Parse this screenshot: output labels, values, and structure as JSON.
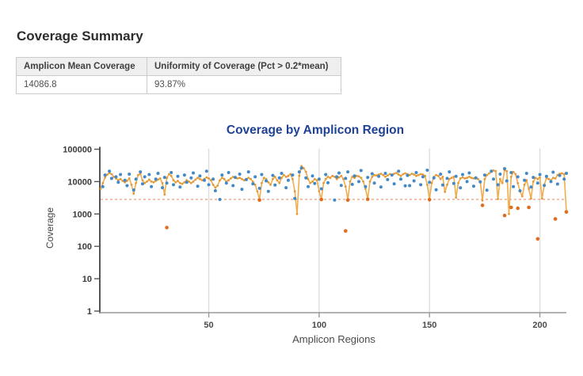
{
  "heading": "Coverage Summary",
  "table": {
    "columns": [
      "Amplicon Mean Coverage",
      "Uniformity of Coverage (Pct > 0.2*mean)"
    ],
    "rows": [
      [
        "14086.8",
        "93.87%"
      ]
    ]
  },
  "chart_data": {
    "type": "line",
    "title": "Coverage by Amplicon Region",
    "xlabel": "Amplicon Regions",
    "ylabel": "Coverage",
    "y_scale": "log",
    "ylim": [
      1,
      100000
    ],
    "xlim": [
      1,
      212
    ],
    "grid": "vertical-only",
    "legend": "none",
    "y_ticks": [
      1,
      10,
      100,
      1000,
      10000,
      100000
    ],
    "x_ticks": [
      50,
      100,
      150,
      200
    ],
    "threshold": {
      "name": "0.2*mean coverage threshold",
      "value": 2817.36,
      "color": "#F19C76"
    },
    "colors": {
      "title": "#1E4297",
      "line": "#F0AD4E",
      "line_marker": "#E49A38",
      "scatter": "#4189C7",
      "outlier": "#E06C1F",
      "grid": "#DDDDDD",
      "y_axis": "#555555",
      "x_axis": "#9A9A9A",
      "tick_text": "#3A3A3A"
    },
    "series": [
      {
        "name": "amplicon-coverage-line",
        "type": "line",
        "color": "#F0AD4E",
        "values": [
          6000,
          9000,
          13500,
          16500,
          18500,
          17000,
          14000,
          12500,
          11000,
          12000,
          10500,
          9500,
          10500,
          12500,
          8000,
          4200,
          9000,
          16000,
          17500,
          11000,
          9000,
          10000,
          11500,
          10000,
          9500,
          10500,
          11500,
          12500,
          9000,
          4000,
          13000,
          17000,
          15000,
          11000,
          9500,
          10500,
          9000,
          8500,
          9500,
          11000,
          10000,
          9000,
          10000,
          11500,
          13000,
          12000,
          11000,
          12000,
          13500,
          12500,
          11000,
          8000,
          6500,
          7500,
          11000,
          13000,
          12000,
          10000,
          11000,
          12500,
          14000,
          13000,
          12500,
          13000,
          12000,
          11000,
          12000,
          13000,
          12000,
          10000,
          8000,
          5000,
          2800,
          9000,
          13000,
          12000,
          9500,
          8000,
          12000,
          14000,
          11000,
          9000,
          13000,
          16000,
          14000,
          15000,
          17000,
          12000,
          5000,
          1000,
          15000,
          30000,
          26000,
          20000,
          12000,
          9000,
          10000,
          12000,
          11000,
          5000,
          2900,
          9000,
          12000,
          14000,
          13000,
          15000,
          14000,
          12000,
          13500,
          15000,
          12000,
          7000,
          2750,
          10000,
          14000,
          13000,
          15000,
          14500,
          13000,
          10000,
          6000,
          2900,
          10000,
          14000,
          16000,
          15500,
          16500,
          17500,
          16000,
          14000,
          15500,
          17000,
          16000,
          17500,
          18500,
          16500,
          15000,
          17000,
          18000,
          17000,
          16000,
          17500,
          16500,
          15000,
          16000,
          17000,
          16500,
          15000,
          8000,
          2800,
          9000,
          14000,
          16000,
          15000,
          12000,
          14000,
          4800,
          8000,
          12000,
          13000,
          14000,
          3200,
          9000,
          12500,
          13500,
          12500,
          13000,
          14000,
          13000,
          12500,
          13500,
          12000,
          10000,
          2600,
          12000,
          16000,
          18000,
          20000,
          22000,
          21000,
          2900,
          12000,
          9000,
          22500,
          21000,
          1000,
          14000,
          20000,
          17000,
          9000,
          5000,
          3500,
          8000,
          11000,
          6000,
          3000,
          10000,
          13000,
          12000,
          13500,
          3000,
          8000,
          13000,
          12000,
          11000,
          13000,
          12500,
          16000,
          17500,
          18000,
          17000,
          1200
        ]
      },
      {
        "name": "amplicon-coverage-points",
        "type": "scatter",
        "color": "#4189C7",
        "points": [
          [
            2,
            7000
          ],
          [
            3,
            16000
          ],
          [
            5,
            21000
          ],
          [
            6,
            12500
          ],
          [
            8,
            14000
          ],
          [
            9,
            9500
          ],
          [
            10,
            16500
          ],
          [
            12,
            11000
          ],
          [
            13,
            7500
          ],
          [
            14,
            17000
          ],
          [
            16,
            5500
          ],
          [
            17,
            12000
          ],
          [
            19,
            20000
          ],
          [
            20,
            8500
          ],
          [
            21,
            14000
          ],
          [
            23,
            16500
          ],
          [
            24,
            7000
          ],
          [
            26,
            12000
          ],
          [
            27,
            18000
          ],
          [
            29,
            6500
          ],
          [
            30,
            13500
          ],
          [
            31,
            9000
          ],
          [
            33,
            19000
          ],
          [
            34,
            8000
          ],
          [
            36,
            14500
          ],
          [
            37,
            6800
          ],
          [
            39,
            16000
          ],
          [
            40,
            9500
          ],
          [
            42,
            13000
          ],
          [
            43,
            18500
          ],
          [
            45,
            7200
          ],
          [
            46,
            15000
          ],
          [
            48,
            11000
          ],
          [
            49,
            21000
          ],
          [
            50,
            8000
          ],
          [
            52,
            12000
          ],
          [
            53,
            5200
          ],
          [
            55,
            2800
          ],
          [
            56,
            16000
          ],
          [
            58,
            9000
          ],
          [
            59,
            19000
          ],
          [
            61,
            7500
          ],
          [
            62,
            13500
          ],
          [
            64,
            17000
          ],
          [
            65,
            5800
          ],
          [
            67,
            11500
          ],
          [
            68,
            20000
          ],
          [
            70,
            8500
          ],
          [
            71,
            14000
          ],
          [
            73,
            6200
          ],
          [
            74,
            16500
          ],
          [
            76,
            10500
          ],
          [
            77,
            5000
          ],
          [
            79,
            15500
          ],
          [
            80,
            7800
          ],
          [
            82,
            13000
          ],
          [
            83,
            18000
          ],
          [
            85,
            6500
          ],
          [
            86,
            11000
          ],
          [
            88,
            16000
          ],
          [
            89,
            3000
          ],
          [
            91,
            20000
          ],
          [
            92,
            26000
          ],
          [
            94,
            13000
          ],
          [
            95,
            7000
          ],
          [
            97,
            15000
          ],
          [
            98,
            8800
          ],
          [
            100,
            12000
          ],
          [
            101,
            6000
          ],
          [
            103,
            16500
          ],
          [
            104,
            9200
          ],
          [
            107,
            2700
          ],
          [
            108,
            14000
          ],
          [
            109,
            18500
          ],
          [
            110,
            7600
          ],
          [
            112,
            12500
          ],
          [
            113,
            20000
          ],
          [
            115,
            8200
          ],
          [
            116,
            15000
          ],
          [
            118,
            10000
          ],
          [
            119,
            22000
          ],
          [
            121,
            7000
          ],
          [
            122,
            13500
          ],
          [
            124,
            17500
          ],
          [
            125,
            9000
          ],
          [
            127,
            14500
          ],
          [
            128,
            6800
          ],
          [
            130,
            18000
          ],
          [
            131,
            11500
          ],
          [
            133,
            16000
          ],
          [
            134,
            8500
          ],
          [
            136,
            21000
          ],
          [
            137,
            12000
          ],
          [
            139,
            7400
          ],
          [
            140,
            15500
          ],
          [
            141,
            7500
          ],
          [
            143,
            10500
          ],
          [
            144,
            19000
          ],
          [
            146,
            8000
          ],
          [
            147,
            14000
          ],
          [
            149,
            22500
          ],
          [
            150,
            9500
          ],
          [
            152,
            13000
          ],
          [
            153,
            5600
          ],
          [
            155,
            17000
          ],
          [
            156,
            7800
          ],
          [
            158,
            12500
          ],
          [
            159,
            20000
          ],
          [
            161,
            8800
          ],
          [
            162,
            14500
          ],
          [
            164,
            6400
          ],
          [
            165,
            16500
          ],
          [
            167,
            10000
          ],
          [
            168,
            18500
          ],
          [
            170,
            7200
          ],
          [
            171,
            13000
          ],
          [
            173,
            9800
          ],
          [
            175,
            16000
          ],
          [
            176,
            5400
          ],
          [
            178,
            21000
          ],
          [
            179,
            12000
          ],
          [
            181,
            8000
          ],
          [
            182,
            17000
          ],
          [
            184,
            25000
          ],
          [
            185,
            10500
          ],
          [
            187,
            19000
          ],
          [
            188,
            7000
          ],
          [
            190,
            14000
          ],
          [
            191,
            5200
          ],
          [
            193,
            11000
          ],
          [
            194,
            18000
          ],
          [
            196,
            6800
          ],
          [
            197,
            13500
          ],
          [
            199,
            9000
          ],
          [
            200,
            16500
          ],
          [
            202,
            7600
          ],
          [
            203,
            14500
          ],
          [
            205,
            10000
          ],
          [
            206,
            19500
          ],
          [
            208,
            8400
          ],
          [
            209,
            15500
          ],
          [
            211,
            12000
          ],
          [
            212,
            18000
          ]
        ]
      },
      {
        "name": "below-threshold-points",
        "type": "scatter",
        "color": "#E06C1F",
        "points": [
          [
            31,
            380
          ],
          [
            73,
            2700
          ],
          [
            101,
            2800
          ],
          [
            112,
            300
          ],
          [
            113,
            2700
          ],
          [
            122,
            2850
          ],
          [
            150,
            2750
          ],
          [
            174,
            1850
          ],
          [
            184,
            900
          ],
          [
            187,
            1600
          ],
          [
            190,
            1500
          ],
          [
            195,
            1600
          ],
          [
            199,
            170
          ],
          [
            207,
            700
          ],
          [
            212,
            1150
          ]
        ]
      }
    ]
  }
}
